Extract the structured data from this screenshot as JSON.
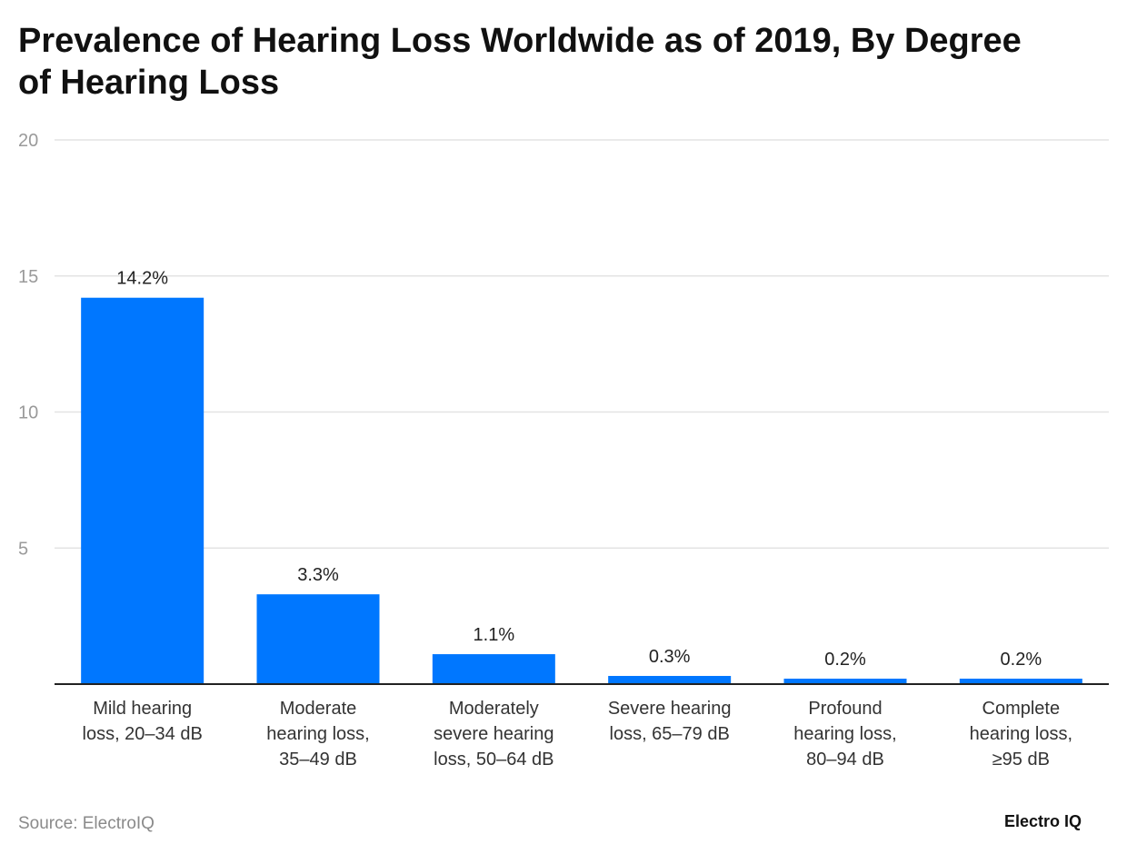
{
  "chart_data": {
    "type": "bar",
    "title": "Prevalence of Hearing Loss Worldwide as of 2019, By Degree of Hearing Loss",
    "categories": [
      [
        "Mild hearing",
        "loss, 20–34 dB"
      ],
      [
        "Moderate",
        "hearing loss,",
        "35–49 dB"
      ],
      [
        "Moderately",
        "severe hearing",
        "loss, 50–64 dB"
      ],
      [
        "Severe hearing",
        "loss, 65–79 dB"
      ],
      [
        "Profound",
        "hearing loss,",
        "80–94 dB"
      ],
      [
        "Complete",
        "hearing loss,",
        "≥95 dB"
      ]
    ],
    "values": [
      14.2,
      3.3,
      1.1,
      0.3,
      0.2,
      0.2
    ],
    "data_labels": [
      "14.2%",
      "3.3%",
      "1.1%",
      "0.3%",
      "0.2%",
      "0.2%"
    ],
    "ylim": [
      0,
      20
    ],
    "yticks": [
      5,
      10,
      15,
      20
    ],
    "grid": true,
    "bar_color": "#0077ff",
    "xlabel": "",
    "ylabel": ""
  },
  "source": "Source: ElectroIQ",
  "logo": "Electro IQ"
}
